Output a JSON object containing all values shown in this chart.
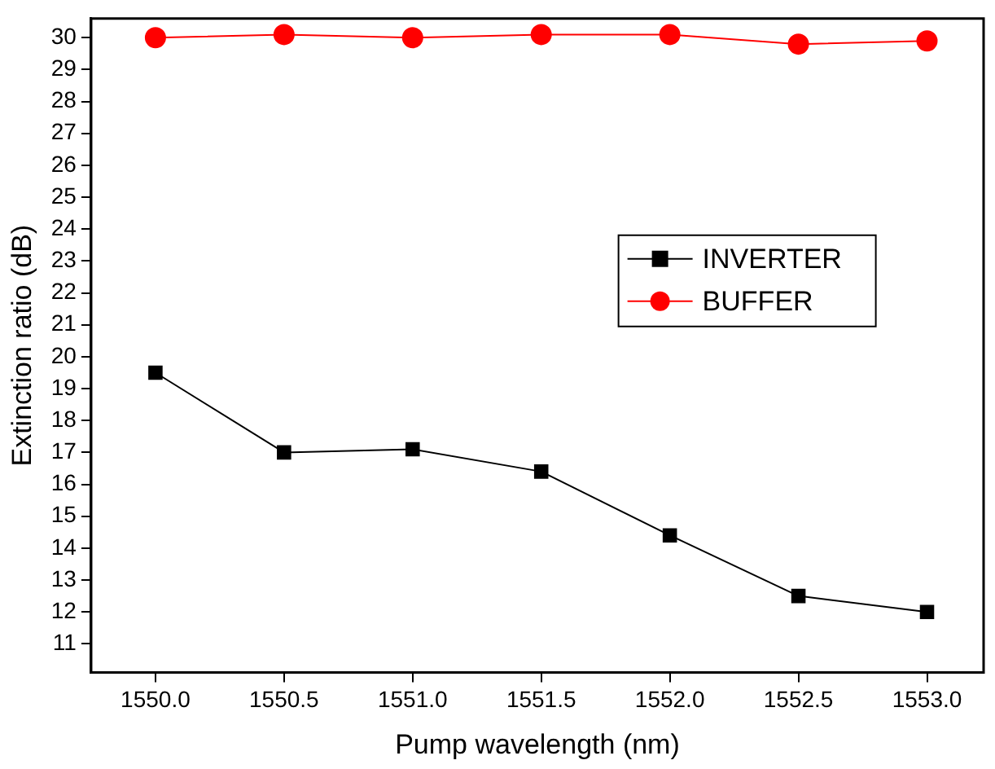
{
  "chart_data": {
    "type": "line",
    "xlabel": "Pump wavelength (nm)",
    "ylabel": "Extinction ratio (dB)",
    "x": [
      1550.0,
      1550.5,
      1551.0,
      1551.5,
      1552.0,
      1552.5,
      1553.0
    ],
    "xlim": [
      1549.75,
      1553.22
    ],
    "xticks": [
      {
        "value": 1550,
        "label": "1550.0"
      },
      {
        "value": 1550.5,
        "label": "1550.5"
      },
      {
        "value": 1551,
        "label": "1551.0"
      },
      {
        "value": 1551.5,
        "label": "1551.5"
      },
      {
        "value": 1552,
        "label": "1552.0"
      },
      {
        "value": 1552.5,
        "label": "1552.5"
      },
      {
        "value": 1553,
        "label": "1553.0"
      }
    ],
    "ylim": [
      10.1,
      30.6
    ],
    "yticks": [
      11,
      12,
      13,
      14,
      15,
      16,
      17,
      18,
      19,
      20,
      21,
      22,
      23,
      24,
      25,
      26,
      27,
      28,
      29,
      30
    ],
    "legend": "center",
    "grid": false,
    "series": [
      {
        "name": "INVERTER",
        "color": "#000000",
        "marker": "square",
        "values": [
          19.5,
          17.0,
          17.1,
          16.4,
          14.4,
          12.5,
          12.0
        ]
      },
      {
        "name": "BUFFER",
        "color": "#ff0000",
        "marker": "circle",
        "values": [
          30.0,
          30.1,
          30.0,
          30.1,
          30.1,
          29.8,
          29.9
        ]
      }
    ]
  }
}
